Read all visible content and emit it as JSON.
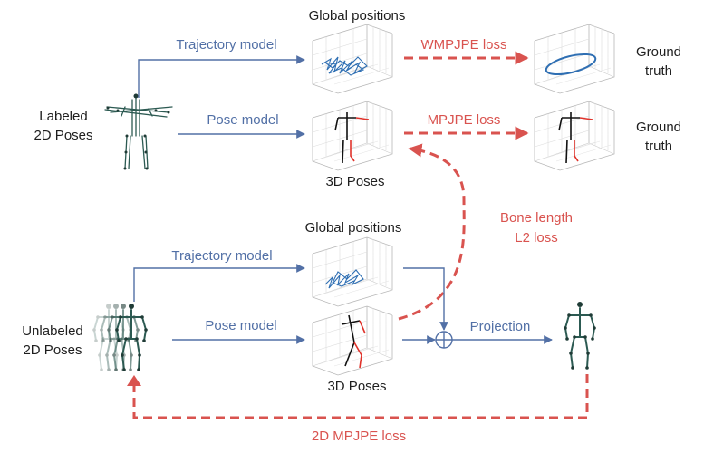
{
  "labels": {
    "labeled_poses_line1": "Labeled",
    "labeled_poses_line2": "2D Poses",
    "unlabeled_poses_line1": "Unlabeled",
    "unlabeled_poses_line2": "2D Poses",
    "global_positions_top": "Global positions",
    "global_positions_bottom": "Global positions",
    "poses3d_top": "3D Poses",
    "poses3d_bottom": "3D Poses",
    "ground_truth_1_line1": "Ground",
    "ground_truth_1_line2": "truth",
    "ground_truth_2_line1": "Ground",
    "ground_truth_2_line2": "truth"
  },
  "models": {
    "trajectory_top": "Trajectory model",
    "pose_top": "Pose model",
    "trajectory_bottom": "Trajectory model",
    "pose_bottom": "Pose model",
    "projection": "Projection"
  },
  "losses": {
    "wmpjpe": "WMPJPE loss",
    "mpjpe": "MPJPE loss",
    "bone_length_line1": "Bone length",
    "bone_length_line2": "L2 loss",
    "mpjpe_2d": "2D MPJPE loss"
  },
  "colors": {
    "model_blue": "#5270a6",
    "loss_red": "#d9534f",
    "skeleton_teal": "#2c5a52",
    "trajectory_blue": "#2f6fb3",
    "text_dark": "#1e1e1e"
  },
  "icons": [
    "plus-circle-icon",
    "skeleton-icon",
    "3d-plot-icon"
  ]
}
